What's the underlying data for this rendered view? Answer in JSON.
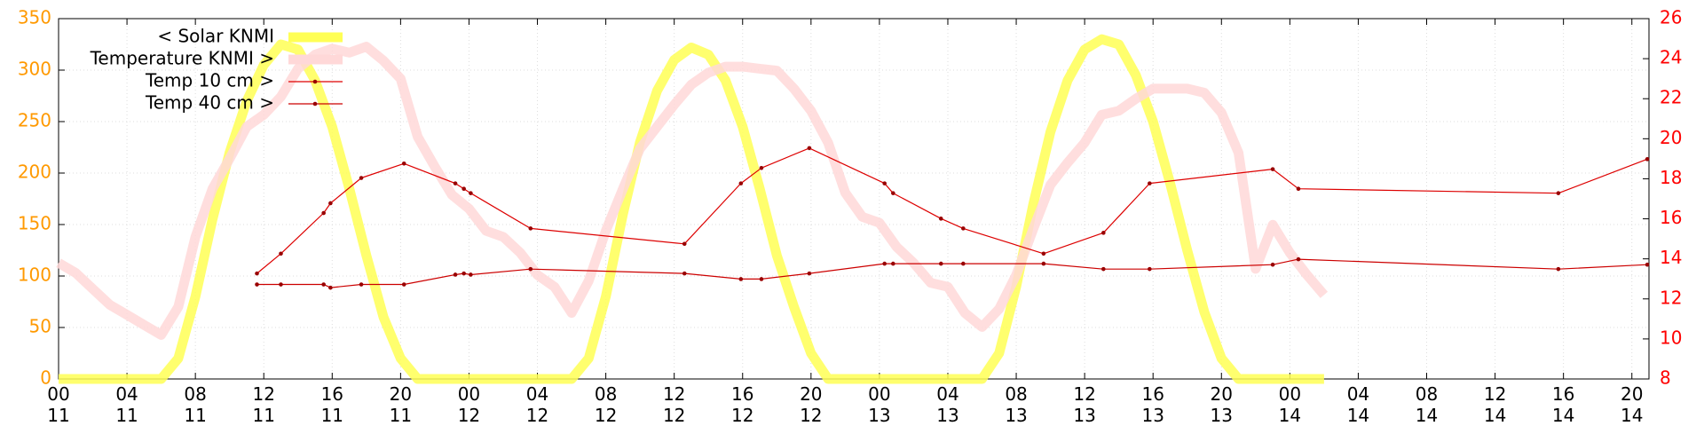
{
  "chart_data": {
    "type": "line",
    "xlim": [
      0,
      93
    ],
    "xticks": [
      {
        "value": 0,
        "label": "00\n11"
      },
      {
        "value": 4,
        "label": "04\n11"
      },
      {
        "value": 8,
        "label": "08\n11"
      },
      {
        "value": 12,
        "label": "12\n11"
      },
      {
        "value": 16,
        "label": "16\n11"
      },
      {
        "value": 20,
        "label": "20\n11"
      },
      {
        "value": 24,
        "label": "00\n12"
      },
      {
        "value": 28,
        "label": "04\n12"
      },
      {
        "value": 32,
        "label": "08\n12"
      },
      {
        "value": 36,
        "label": "12\n12"
      },
      {
        "value": 40,
        "label": "16\n12"
      },
      {
        "value": 44,
        "label": "20\n12"
      },
      {
        "value": 48,
        "label": "00\n13"
      },
      {
        "value": 52,
        "label": "04\n13"
      },
      {
        "value": 56,
        "label": "08\n13"
      },
      {
        "value": 60,
        "label": "12\n13"
      },
      {
        "value": 64,
        "label": "16\n13"
      },
      {
        "value": 68,
        "label": "20\n13"
      },
      {
        "value": 72,
        "label": "00\n14"
      },
      {
        "value": 76,
        "label": "04\n14"
      },
      {
        "value": 80,
        "label": "08\n14"
      },
      {
        "value": 84,
        "label": "12\n14"
      },
      {
        "value": 88,
        "label": "16\n14"
      },
      {
        "value": 92,
        "label": "20\n14"
      }
    ],
    "ylim": [
      0,
      350
    ],
    "yticks": [
      0,
      50,
      100,
      150,
      200,
      250,
      300,
      350
    ],
    "ycolor": "#ff9900",
    "y2lim": [
      8,
      26
    ],
    "y2ticks": [
      8,
      10,
      12,
      14,
      16,
      18,
      20,
      22,
      24,
      26
    ],
    "y2color": "#ff0000",
    "grid": true,
    "legend": "top-left",
    "series": [
      {
        "name": "< Solar KNMI",
        "color": "#ffff55",
        "axis": "y",
        "style": "thick",
        "x": [
          0,
          1,
          2,
          3,
          4,
          5,
          6,
          7,
          8,
          9,
          10,
          11,
          12,
          13,
          14,
          15,
          16,
          17,
          18,
          19,
          20,
          21,
          22,
          23,
          24,
          25,
          26,
          27,
          28,
          29,
          30,
          31,
          32,
          33,
          34,
          35,
          36,
          37,
          38,
          39,
          40,
          41,
          42,
          43,
          44,
          45,
          46,
          47,
          48,
          49,
          50,
          51,
          52,
          53,
          54,
          55,
          56,
          57,
          58,
          59,
          60,
          61,
          62,
          63,
          64,
          65,
          66,
          67,
          68,
          69,
          70,
          71,
          72,
          73,
          74
        ],
        "values": [
          0,
          0,
          0,
          0,
          0,
          0,
          0,
          20,
          80,
          155,
          220,
          270,
          305,
          325,
          320,
          290,
          245,
          185,
          120,
          60,
          20,
          0,
          0,
          0,
          0,
          0,
          0,
          0,
          0,
          0,
          0,
          20,
          80,
          160,
          230,
          280,
          310,
          322,
          315,
          290,
          245,
          185,
          120,
          70,
          25,
          0,
          0,
          0,
          0,
          0,
          0,
          0,
          0,
          0,
          0,
          25,
          90,
          170,
          240,
          290,
          320,
          330,
          325,
          295,
          250,
          190,
          125,
          65,
          20,
          0,
          0,
          0,
          0,
          0,
          0
        ]
      },
      {
        "name": "Temperature KNMI >",
        "color": "#ffd8d8",
        "axis": "y2",
        "style": "thick",
        "x": [
          0,
          1,
          2,
          3,
          4,
          5,
          6,
          7,
          8,
          9,
          10,
          11,
          12,
          13,
          14,
          15,
          16,
          17,
          18,
          19,
          20,
          21,
          22,
          23,
          24,
          25,
          26,
          27,
          28,
          29,
          30,
          31,
          32,
          33,
          34,
          35,
          36,
          37,
          38,
          39,
          40,
          41,
          42,
          43,
          44,
          45,
          46,
          47,
          48,
          49,
          50,
          51,
          52,
          53,
          54,
          55,
          56,
          57,
          58,
          59,
          60,
          61,
          62,
          63,
          64,
          65,
          66,
          67,
          68,
          69,
          70,
          71,
          72,
          73,
          74
        ],
        "values": [
          13.8,
          13.3,
          12.5,
          11.7,
          11.2,
          10.7,
          10.2,
          11.6,
          15.1,
          17.5,
          19.0,
          20.6,
          21.2,
          22.1,
          23.5,
          24.2,
          24.5,
          24.3,
          24.6,
          23.9,
          23.0,
          20.1,
          18.6,
          17.2,
          16.5,
          15.4,
          15.1,
          14.3,
          13.2,
          12.6,
          11.3,
          12.9,
          15.4,
          17.5,
          19.5,
          20.6,
          21.7,
          22.7,
          23.3,
          23.6,
          23.6,
          23.5,
          23.4,
          22.5,
          21.4,
          19.8,
          17.3,
          16.1,
          15.8,
          14.6,
          13.8,
          12.8,
          12.6,
          11.3,
          10.6,
          11.5,
          13.2,
          15.5,
          17.7,
          18.8,
          19.8,
          21.2,
          21.4,
          22.0,
          22.5,
          22.5,
          22.5,
          22.3,
          21.3,
          19.3,
          13.5,
          15.7,
          14.3,
          13.2,
          12.2
        ]
      },
      {
        "name": "Temp 10 cm >",
        "color": "#dd0000",
        "axis": "y2",
        "style": "thin",
        "x": [
          11.6,
          13.0,
          15.5,
          15.9,
          17.7,
          20.2,
          23.2,
          23.7,
          24.1,
          27.6,
          36.6,
          39.9,
          41.1,
          43.9,
          48.3,
          48.8,
          51.6,
          52.9,
          57.6,
          61.1,
          63.8,
          71.0,
          72.5,
          87.7,
          92.9
        ],
        "values": [
          13.27,
          14.26,
          16.29,
          16.78,
          18.04,
          18.76,
          17.77,
          17.5,
          17.28,
          15.52,
          14.75,
          17.77,
          18.54,
          19.53,
          17.77,
          17.28,
          16.01,
          15.52,
          14.26,
          15.3,
          17.77,
          18.48,
          17.5,
          17.28,
          18.98
        ]
      },
      {
        "name": "Temp 40 cm >",
        "color": "#cc0000",
        "axis": "y2",
        "style": "thin",
        "x": [
          11.6,
          13.0,
          15.5,
          15.9,
          17.7,
          20.2,
          23.2,
          23.7,
          24.1,
          27.6,
          36.6,
          39.9,
          41.1,
          43.9,
          48.3,
          48.8,
          51.6,
          52.9,
          57.6,
          61.1,
          63.8,
          71.0,
          72.5,
          87.7,
          92.9
        ],
        "values": [
          12.72,
          12.72,
          12.72,
          12.56,
          12.72,
          12.72,
          13.21,
          13.27,
          13.21,
          13.49,
          13.27,
          12.99,
          12.99,
          13.27,
          13.76,
          13.76,
          13.76,
          13.76,
          13.76,
          13.49,
          13.49,
          13.71,
          13.98,
          13.49,
          13.71
        ]
      }
    ]
  }
}
